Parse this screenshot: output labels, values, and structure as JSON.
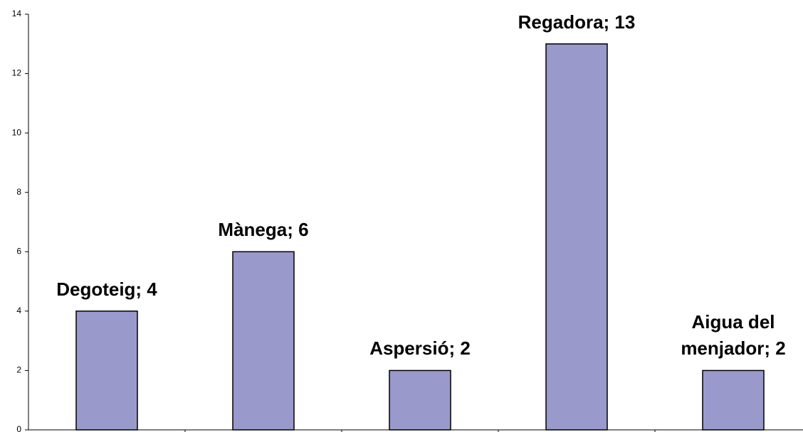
{
  "chart_data": {
    "type": "bar",
    "values": [
      4,
      6,
      2,
      13,
      2
    ],
    "value_labels": [
      "Degoteig; 4",
      "Mànega; 6",
      "Aspersió; 2",
      "Regadora; 13",
      "Aigua del menjador; 2"
    ],
    "color": "#9999cc",
    "ylim": [
      0,
      14
    ],
    "yticks": [
      0,
      2,
      4,
      6,
      8,
      10,
      12,
      14
    ]
  }
}
